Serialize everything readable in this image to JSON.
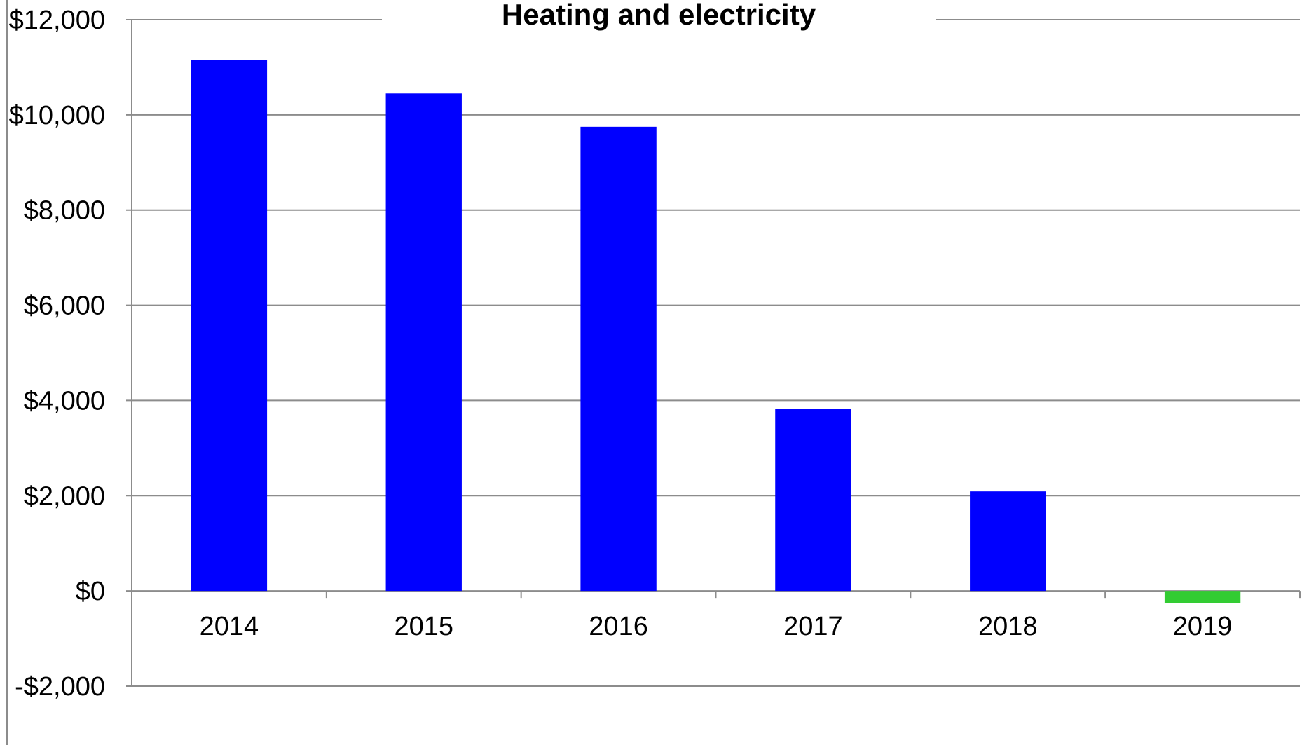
{
  "chart_data": {
    "type": "bar",
    "title": "Heating and electricity",
    "xlabel": "",
    "ylabel": "",
    "categories": [
      "2014",
      "2015",
      "2016",
      "2017",
      "2018",
      "2019"
    ],
    "values": [
      11150,
      10450,
      9750,
      3820,
      2090,
      -260
    ],
    "ylim": [
      -2000,
      12000
    ],
    "y_ticks": [
      12000,
      10000,
      8000,
      6000,
      4000,
      2000,
      0,
      -2000
    ],
    "y_tick_labels": [
      "$12,000",
      "$10,000",
      "$8,000",
      "$6,000",
      "$4,000",
      "$2,000",
      "$0",
      "-$2,000"
    ],
    "grid": true,
    "legend": "none",
    "colors": {
      "positive": "#0000ff",
      "negative": "#33cc33",
      "grid": "#8c8c8c",
      "axis": "#8c8c8c"
    }
  }
}
